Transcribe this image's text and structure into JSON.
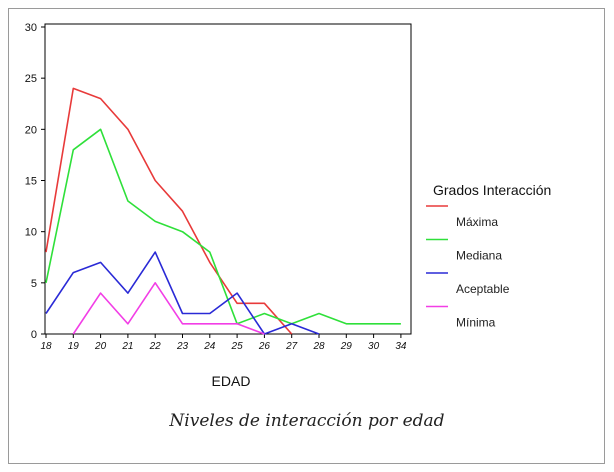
{
  "caption": "Niveles de interacción por edad",
  "chart_data": {
    "type": "line",
    "title": "",
    "xlabel": "EDAD",
    "ylabel": "",
    "x": [
      "18",
      "19",
      "20",
      "21",
      "22",
      "23",
      "24",
      "25",
      "26",
      "27",
      "28",
      "29",
      "30",
      "34"
    ],
    "y_ticks": [
      0,
      5,
      10,
      15,
      20,
      25,
      30
    ],
    "ylim": [
      0,
      30
    ],
    "grid": false,
    "legend": {
      "title": "Grados Interacción",
      "position": "right"
    },
    "series": [
      {
        "name": "Máxima",
        "color": "#e83a3a",
        "values": [
          8,
          24,
          23,
          20,
          15,
          12,
          7,
          3,
          3,
          0,
          null,
          null,
          null,
          null
        ]
      },
      {
        "name": "Mediana",
        "color": "#2fe03a",
        "values": [
          5,
          18,
          20,
          13,
          11,
          10,
          8,
          1,
          2,
          1,
          2,
          1,
          1,
          1
        ]
      },
      {
        "name": "Aceptable",
        "color": "#2a2ad6",
        "values": [
          2,
          6,
          7,
          4,
          8,
          2,
          2,
          4,
          0,
          1,
          0,
          null,
          null,
          null
        ]
      },
      {
        "name": "Mínima",
        "color": "#f23ee6",
        "values": [
          null,
          0,
          4,
          1,
          5,
          1,
          1,
          1,
          0,
          null,
          null,
          null,
          null,
          null
        ]
      }
    ]
  }
}
